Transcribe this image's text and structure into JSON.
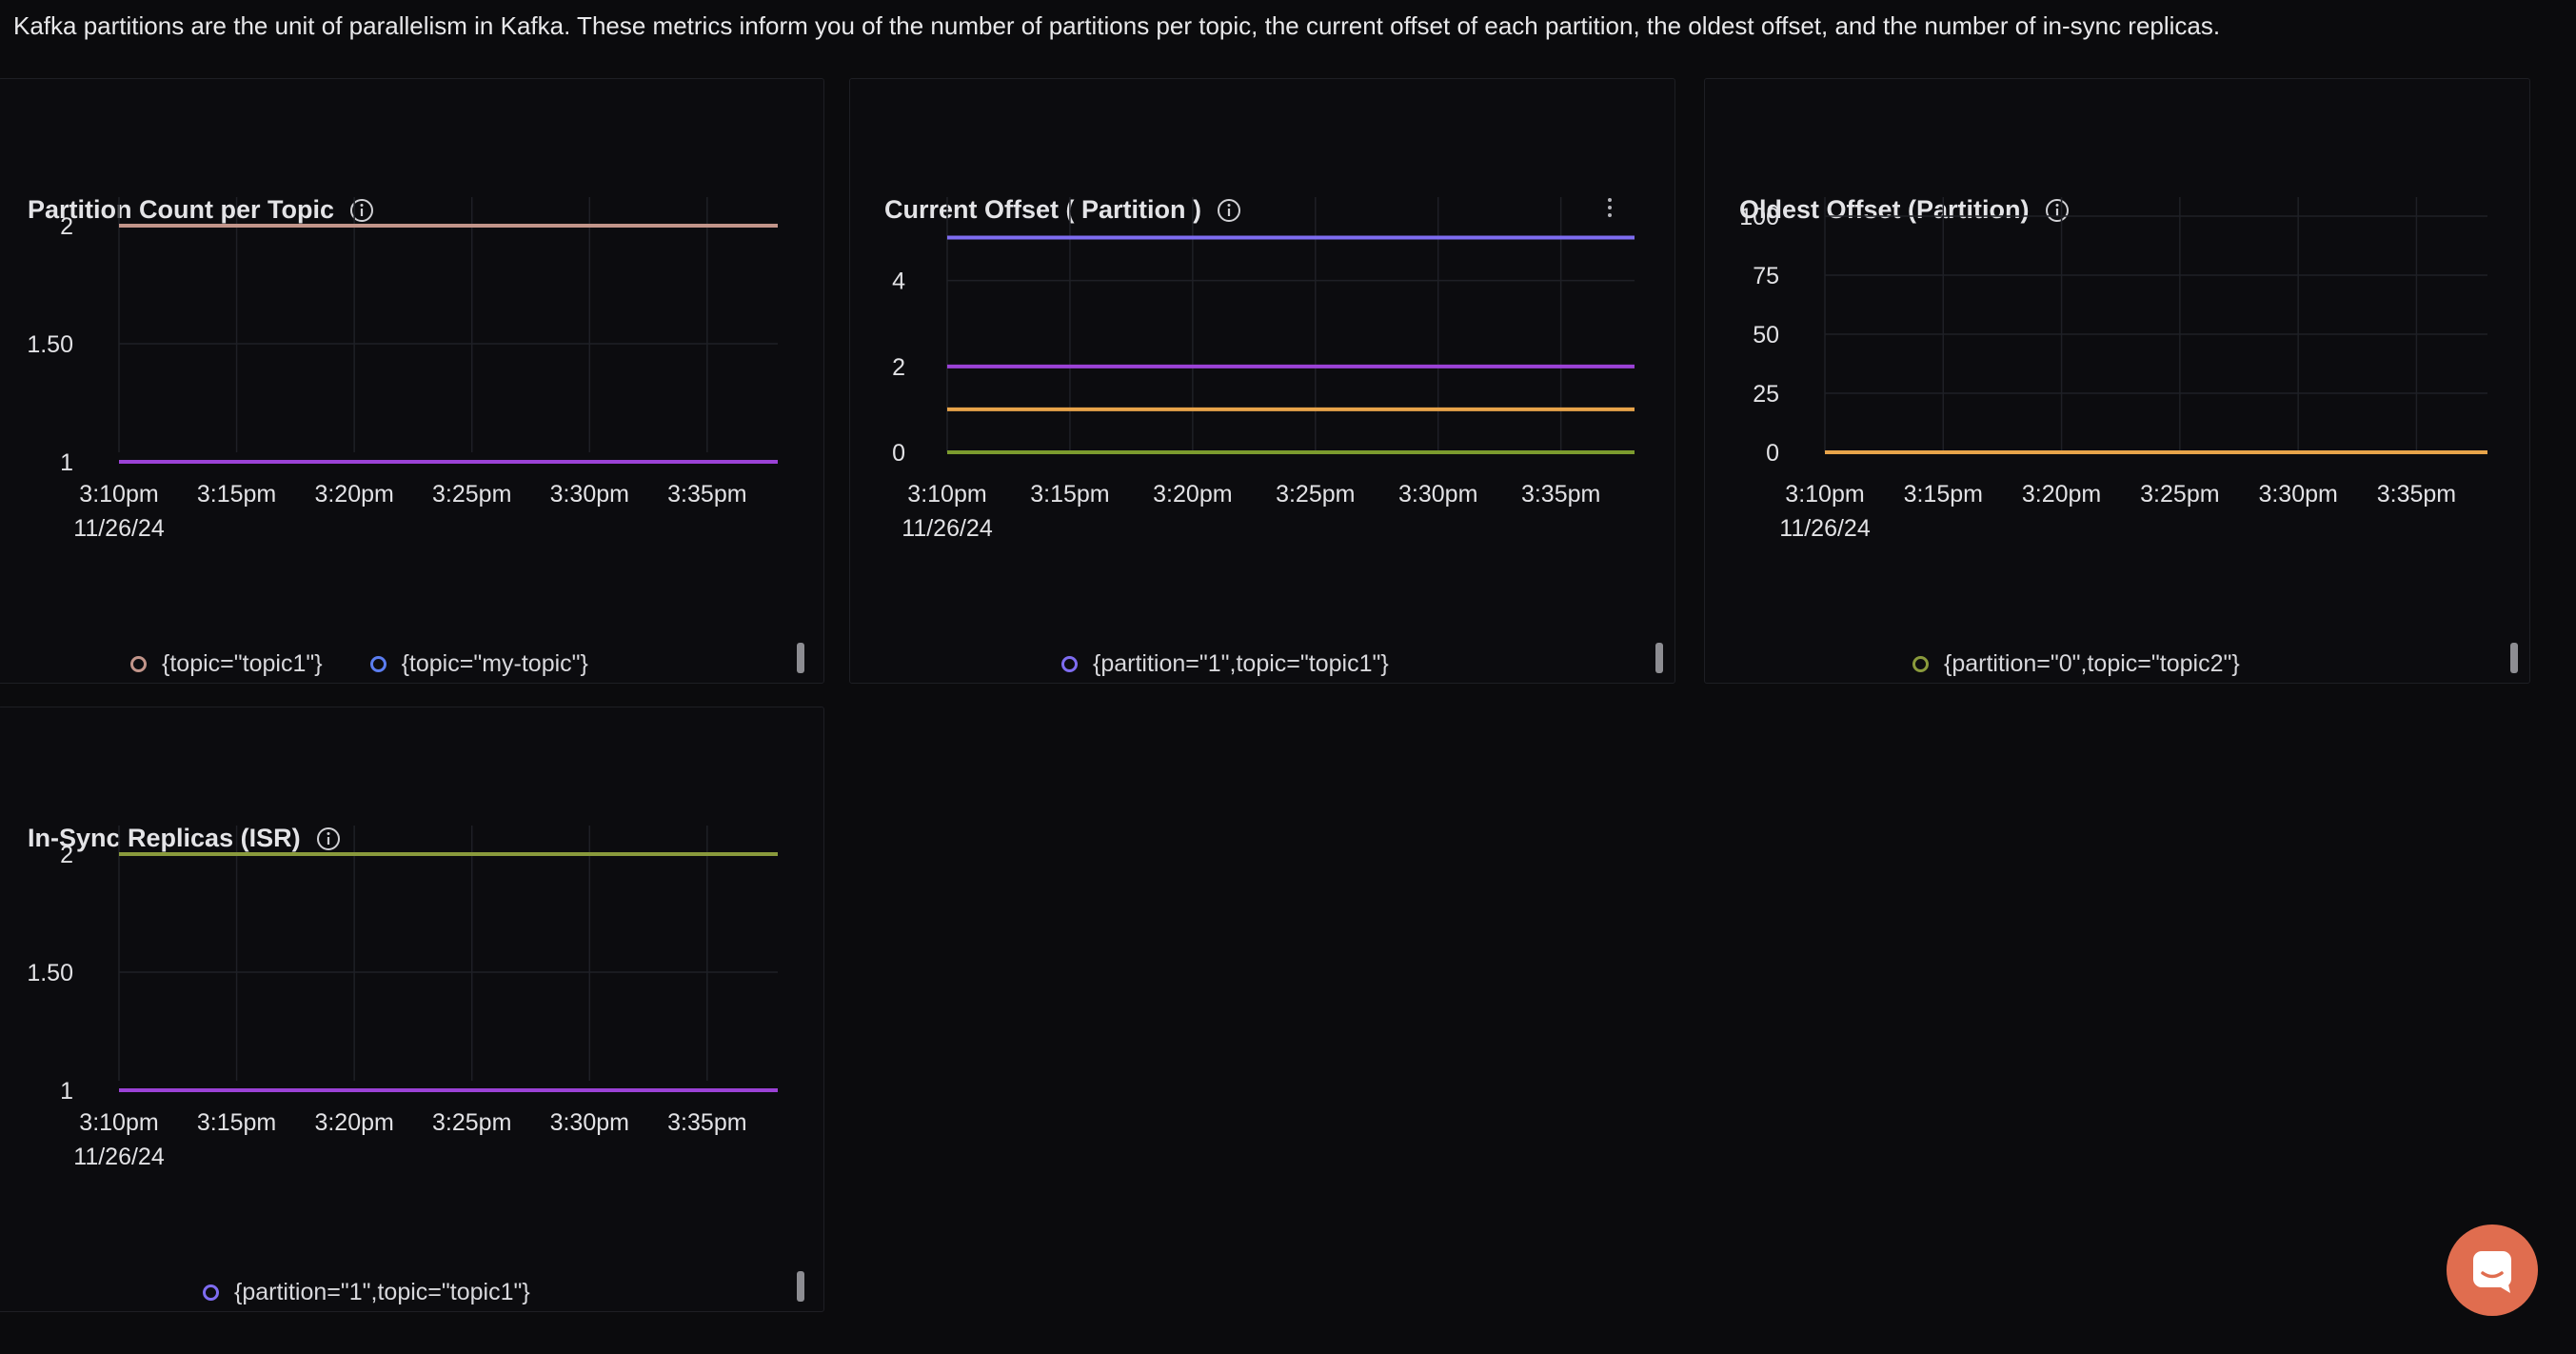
{
  "intro_text": "Kafka partitions are the unit of parallelism in Kafka. These metrics inform you of the number of partitions per topic, the current offset of each partition, the oldest offset, and the number of in-sync replicas.",
  "x_axis": {
    "ticks": [
      "3:10pm",
      "3:15pm",
      "3:20pm",
      "3:25pm",
      "3:30pm",
      "3:35pm"
    ],
    "date_label": "11/26/24"
  },
  "colors": {
    "background": "#0b0b0d",
    "panel_border": "#1e1f24",
    "grid": "#1f2026",
    "chat_button": "#e06d4f"
  },
  "icons": {
    "info": "info-circle-icon",
    "menu": "vertical-ellipsis-icon",
    "chat": "chat-bubble-icon"
  },
  "panels": [
    {
      "title": "Partition Count per Topic",
      "has_menu": false,
      "legend": [
        {
          "label": "{topic=\"topic1\"}",
          "color": "#c2958a"
        },
        {
          "label": "{topic=\"my-topic\"}",
          "color": "#5b7df0"
        }
      ]
    },
    {
      "title": "Current Offset ( Partition )",
      "has_menu": true,
      "legend": [
        {
          "label": "{partition=\"1\",topic=\"topic1\"}",
          "color": "#7e6cf0"
        }
      ]
    },
    {
      "title": "Oldest Offset (Partition)",
      "has_menu": false,
      "legend": [
        {
          "label": "{partition=\"0\",topic=\"topic2\"}",
          "color": "#8a9a3c"
        }
      ]
    },
    {
      "title": "In-Sync Replicas (ISR)",
      "has_menu": false,
      "legend": [
        {
          "label": "{partition=\"1\",topic=\"topic1\"}",
          "color": "#7e6cf0"
        }
      ]
    }
  ],
  "chart_data": [
    {
      "type": "line",
      "title": "Partition Count per Topic",
      "x": [
        "3:10pm",
        "3:15pm",
        "3:20pm",
        "3:25pm",
        "3:30pm",
        "3:35pm"
      ],
      "x_range": [
        0,
        28
      ],
      "y_ticks": [
        "1",
        "1.50",
        "2"
      ],
      "ylim": [
        1,
        2
      ],
      "grid": true,
      "legend_position": "bottom",
      "series": [
        {
          "name": "{topic=\"topic1\"}",
          "value": 2,
          "color": "#c2958a"
        },
        {
          "name": "{topic=\"my-topic\"}",
          "value": 1,
          "color": "#9b42d6"
        }
      ]
    },
    {
      "type": "line",
      "title": "Current Offset ( Partition )",
      "x": [
        "3:10pm",
        "3:15pm",
        "3:20pm",
        "3:25pm",
        "3:30pm",
        "3:35pm"
      ],
      "x_range": [
        0,
        28
      ],
      "y_ticks": [
        "0",
        "2",
        "4"
      ],
      "ylim": [
        0,
        5.5
      ],
      "grid": true,
      "legend_position": "bottom",
      "series": [
        {
          "name": "{partition=\"1\",topic=\"topic1\"}",
          "value": 5,
          "color": "#7e6cf0"
        },
        {
          "value": 2,
          "color": "#9b42d6"
        },
        {
          "value": 1,
          "color": "#e8a44a"
        },
        {
          "value": 0,
          "color": "#7c9b2e"
        }
      ]
    },
    {
      "type": "line",
      "title": "Oldest Offset (Partition)",
      "x": [
        "3:10pm",
        "3:15pm",
        "3:20pm",
        "3:25pm",
        "3:30pm",
        "3:35pm"
      ],
      "x_range": [
        0,
        28
      ],
      "y_ticks": [
        "0",
        "25",
        "50",
        "75",
        "100"
      ],
      "ylim": [
        0,
        100
      ],
      "grid": true,
      "legend_position": "bottom",
      "series": [
        {
          "name": "{partition=\"0\",topic=\"topic2\"}",
          "value": 0,
          "color": "#e8a44a"
        }
      ]
    },
    {
      "type": "line",
      "title": "In-Sync Replicas (ISR)",
      "x": [
        "3:10pm",
        "3:15pm",
        "3:20pm",
        "3:25pm",
        "3:30pm",
        "3:35pm"
      ],
      "x_range": [
        0,
        28
      ],
      "y_ticks": [
        "1",
        "1.50",
        "2"
      ],
      "ylim": [
        1,
        2
      ],
      "grid": true,
      "legend_position": "bottom",
      "series": [
        {
          "value": 2,
          "color": "#8a9a3c"
        },
        {
          "name": "{partition=\"1\",topic=\"topic1\"}",
          "value": 1,
          "color": "#9b42d6"
        }
      ]
    }
  ]
}
